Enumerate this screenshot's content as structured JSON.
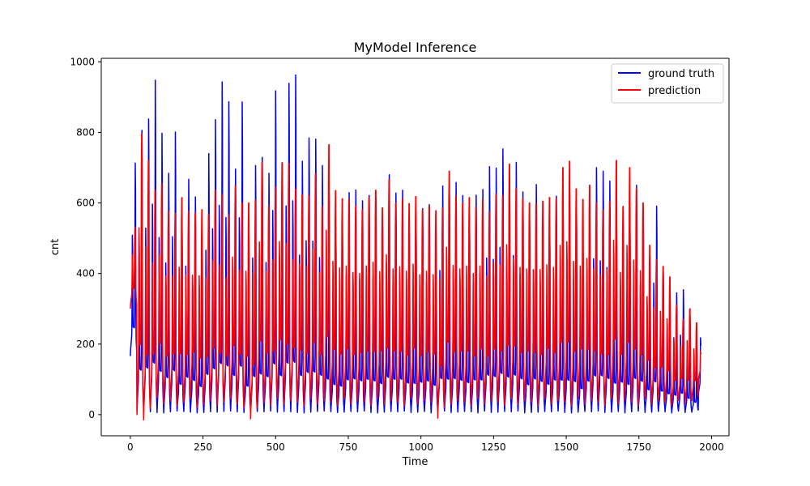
{
  "chart_data": {
    "type": "line",
    "title": "MyModel Inference",
    "xlabel": "Time",
    "ylabel": "cnt",
    "xlim": [
      -100,
      2060
    ],
    "ylim": [
      -60,
      1010
    ],
    "xticks": [
      0,
      250,
      500,
      750,
      1000,
      1250,
      1500,
      1750,
      2000
    ],
    "yticks": [
      0,
      200,
      400,
      600,
      800,
      1000
    ],
    "grid": false,
    "legend_position": "upper right",
    "n_points": 1964,
    "series": [
      {
        "name": "ground truth",
        "color": "#0000ff",
        "daily_peaks": [
          713,
          806,
          838,
          948,
          798,
          684,
          801,
          525,
          667,
          617,
          512,
          740,
          836,
          943,
          887,
          696,
          886,
          514,
          706,
          729,
          684,
          918,
          710,
          939,
          963,
          718,
          784,
          781,
          706,
          627,
          533,
          515,
          629,
          637,
          606,
          621,
          615,
          570,
          680,
          628,
          636,
          552,
          566,
          584,
          595,
          536,
          648,
          625,
          658,
          621,
          566,
          622,
          638,
          703,
          699,
          753,
          672,
          715,
          631,
          547,
          652,
          600,
          533,
          619,
          605,
          627,
          608,
          458,
          592,
          700,
          690,
          662,
          564,
          574,
          551,
          650,
          585,
          444,
          591,
          400,
          355,
          345,
          354,
          279,
          197,
          312
        ],
        "daily_troughs": [
          166,
          9,
          10,
          8,
          6,
          5,
          8,
          10,
          9,
          7,
          5,
          6,
          8,
          7,
          9,
          10,
          8,
          6,
          5,
          9,
          8,
          10,
          7,
          9,
          8,
          6,
          5,
          7,
          9,
          10,
          8,
          6,
          7,
          9,
          8,
          10,
          6,
          5,
          7,
          9,
          8,
          10,
          6,
          7,
          9,
          5,
          8,
          10,
          6,
          7,
          9,
          8,
          5,
          10,
          6,
          7,
          9,
          8,
          10,
          5,
          6,
          7,
          9,
          8,
          10,
          6,
          5,
          7,
          9,
          8,
          10,
          6,
          7,
          9,
          5,
          8,
          10,
          6,
          7,
          9,
          8,
          5,
          10,
          6,
          7,
          60
        ]
      },
      {
        "name": "prediction",
        "color": "#ff0000",
        "daily_peaks": [
          530,
          795,
          720,
          636,
          655,
          576,
          570,
          615,
          576,
          571,
          581,
          567,
          636,
          624,
          566,
          648,
          600,
          600,
          608,
          715,
          592,
          645,
          714,
          712,
          639,
          623,
          620,
          682,
          590,
          765,
          635,
          612,
          610,
          590,
          581,
          615,
          636,
          586,
          666,
          600,
          612,
          598,
          618,
          580,
          590,
          578,
          585,
          690,
          620,
          600,
          615,
          588,
          610,
          575,
          625,
          620,
          710,
          640,
          612,
          600,
          598,
          605,
          615,
          612,
          700,
          718,
          640,
          610,
          650,
          600,
          580,
          605,
          720,
          590,
          700,
          640,
          600,
          480,
          440,
          420,
          390,
          310,
          270,
          300,
          260,
          220
        ],
        "daily_troughs": [
          300,
          0,
          -15,
          18,
          50,
          30,
          40,
          25,
          35,
          45,
          20,
          30,
          40,
          25,
          35,
          45,
          30,
          20,
          -12,
          40,
          35,
          25,
          45,
          30,
          40,
          35,
          25,
          45,
          30,
          40,
          35,
          25,
          45,
          30,
          40,
          35,
          25,
          45,
          30,
          40,
          35,
          25,
          45,
          30,
          40,
          35,
          -10,
          45,
          30,
          40,
          35,
          25,
          45,
          30,
          40,
          35,
          25,
          45,
          30,
          40,
          35,
          25,
          45,
          30,
          40,
          35,
          25,
          45,
          30,
          40,
          35,
          25,
          45,
          30,
          40,
          35,
          25,
          45,
          30,
          40,
          35,
          25,
          45,
          30,
          40,
          100
        ]
      }
    ]
  }
}
